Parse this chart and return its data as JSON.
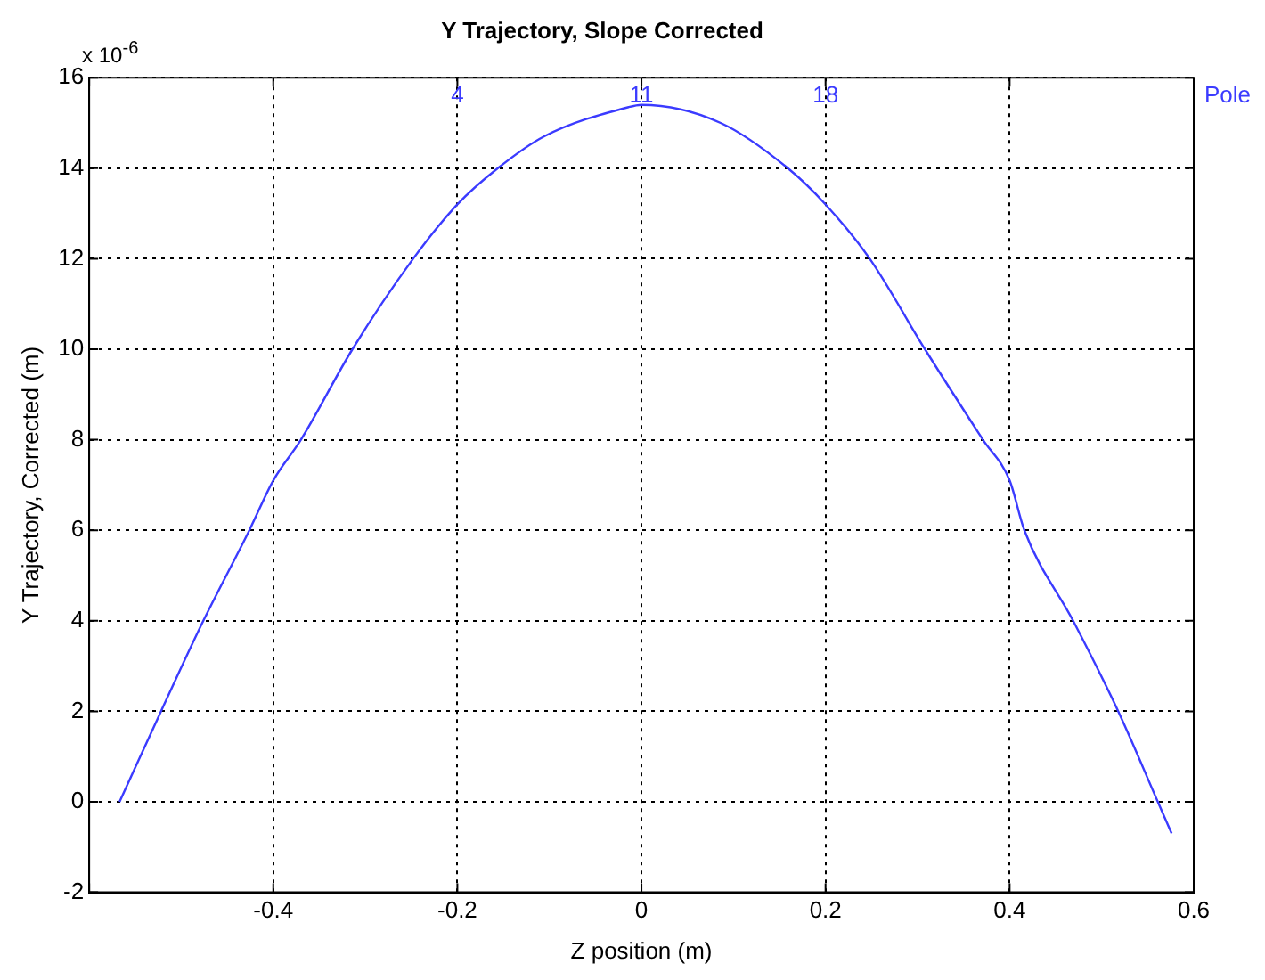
{
  "chart_data": {
    "type": "line",
    "title": "Y Trajectory, Slope Corrected",
    "xlabel": "Z position (m)",
    "ylabel": "Y Trajectory, Corrected (m)",
    "x": [
      -0.567,
      -0.522,
      -0.476,
      -0.426,
      -0.4,
      -0.37,
      -0.314,
      -0.248,
      -0.2,
      -0.156,
      -0.106,
      -0.014,
      0,
      0.086,
      0.159,
      0.2,
      0.248,
      0.308,
      0.371,
      0.4,
      0.416,
      0.469,
      0.518,
      0.561,
      0.576
    ],
    "series": [
      {
        "color": "#3b3bff",
        "values": [
          0,
          2,
          4,
          6,
          7.1,
          8,
          10,
          12,
          13.2,
          14,
          14.7,
          15.35,
          15.4,
          15,
          14,
          13.2,
          12,
          10,
          8,
          7.1,
          6,
          4,
          2,
          0,
          -0.7
        ]
      }
    ],
    "xlim": [
      -0.6,
      0.6
    ],
    "xticks": [
      {
        "value": -0.6,
        "label": null
      },
      -0.4,
      -0.2,
      0,
      0.2,
      0.4,
      0.6
    ],
    "ylim": [
      -2,
      16
    ],
    "yticks": [
      -2,
      0,
      2,
      4,
      6,
      8,
      10,
      12,
      14,
      16
    ],
    "grid": true,
    "legend": false,
    "marker": "none",
    "line_style": "solid",
    "annotations": [
      "x 10$^{-6}$",
      "4",
      "11",
      "18",
      "Pole"
    ]
  }
}
